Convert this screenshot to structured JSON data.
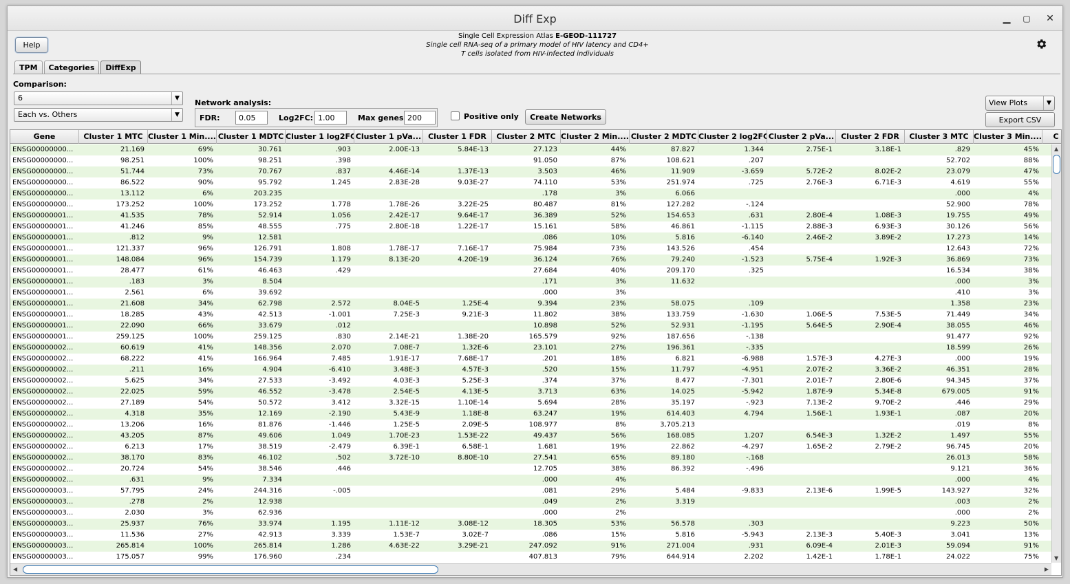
{
  "window": {
    "title": "Diff Exp"
  },
  "help_label": "Help",
  "header": {
    "line1_prefix": "Single Cell Expression Atlas",
    "line1_id": "E-GEOD-111727",
    "line2": "Single cell RNA-seq of a primary model of HIV latency and CD4+",
    "line3": "T cells isolated from HIV-infected individuals"
  },
  "tabs": [
    "TPM",
    "Categories",
    "DiffExp"
  ],
  "active_tab": "DiffExp",
  "comparison": {
    "label": "Comparison:",
    "value": "6",
    "mode": "Each vs. Others"
  },
  "network": {
    "label": "Network analysis:",
    "fdr_label": "FDR:",
    "fdr_value": "0.05",
    "log2fc_label": "Log2FC:",
    "log2fc_value": "1.00",
    "maxgenes_label": "Max genes:",
    "maxgenes_value": "200"
  },
  "positive_only_label": "Positive only",
  "create_networks_label": "Create Networks",
  "view_plots_label": "View Plots",
  "export_csv_label": "Export CSV",
  "table": {
    "columns": [
      "Gene",
      "Cluster 1 MTC",
      "Cluster 1 Min....",
      "Cluster 1 MDTC",
      "Cluster 1 log2FC",
      "Cluster 1 pVa...",
      "Cluster 1 FDR",
      "Cluster 2 MTC",
      "Cluster 2 Min....",
      "Cluster 2 MDTC",
      "Cluster 2 log2FC",
      "Cluster 2 pVa...",
      "Cluster 2 FDR",
      "Cluster 3 MTC",
      "Cluster 3 Min....",
      "C"
    ],
    "rows": [
      [
        "ENSG00000000...",
        "21.169",
        "69%",
        "30.761",
        ".903",
        "2.00E-13",
        "5.84E-13",
        "27.123",
        "44%",
        "87.827",
        "1.344",
        "2.75E-1",
        "3.18E-1",
        ".829",
        "45%"
      ],
      [
        "ENSG00000000...",
        "98.251",
        "100%",
        "98.251",
        ".398",
        "",
        "",
        "91.050",
        "87%",
        "108.621",
        ".207",
        "",
        "",
        "52.702",
        "88%"
      ],
      [
        "ENSG00000000...",
        "51.744",
        "73%",
        "70.767",
        ".837",
        "4.46E-14",
        "1.37E-13",
        "3.503",
        "46%",
        "11.909",
        "-3.659",
        "5.72E-2",
        "8.02E-2",
        "23.079",
        "47%"
      ],
      [
        "ENSG00000000...",
        "86.522",
        "90%",
        "95.792",
        "1.245",
        "2.83E-28",
        "9.03E-27",
        "74.110",
        "53%",
        "251.974",
        ".725",
        "2.76E-3",
        "6.71E-3",
        "4.619",
        "55%"
      ],
      [
        "ENSG00000000...",
        "13.112",
        "6%",
        "203.235",
        "",
        "",
        "",
        ".178",
        "3%",
        "6.066",
        "",
        "",
        "",
        ".000",
        "4%"
      ],
      [
        "ENSG00000000...",
        "173.252",
        "100%",
        "173.252",
        "1.778",
        "1.78E-26",
        "3.22E-25",
        "80.487",
        "81%",
        "127.282",
        "-.124",
        "",
        "",
        "52.900",
        "78%"
      ],
      [
        "ENSG00000001...",
        "41.535",
        "78%",
        "52.914",
        "1.056",
        "2.42E-17",
        "9.64E-17",
        "36.389",
        "52%",
        "154.653",
        ".631",
        "2.80E-4",
        "1.08E-3",
        "19.755",
        "49%"
      ],
      [
        "ENSG00000001...",
        "41.246",
        "85%",
        "48.555",
        ".775",
        "2.80E-18",
        "1.22E-17",
        "15.161",
        "58%",
        "46.861",
        "-1.115",
        "2.88E-3",
        "6.93E-3",
        "30.126",
        "56%"
      ],
      [
        "ENSG00000001...",
        ".812",
        "9%",
        "12.581",
        "",
        "",
        "",
        ".086",
        "10%",
        "5.816",
        "-6.140",
        "2.46E-2",
        "3.89E-2",
        "17.273",
        "14%"
      ],
      [
        "ENSG00000001...",
        "121.337",
        "96%",
        "126.791",
        "1.808",
        "1.78E-17",
        "7.16E-17",
        "75.984",
        "73%",
        "143.526",
        ".454",
        "",
        "",
        "12.643",
        "72%"
      ],
      [
        "ENSG00000001...",
        "148.084",
        "96%",
        "154.739",
        "1.179",
        "8.13E-20",
        "4.20E-19",
        "36.124",
        "76%",
        "79.240",
        "-1.523",
        "5.75E-4",
        "1.92E-3",
        "36.869",
        "73%"
      ],
      [
        "ENSG00000001...",
        "28.477",
        "61%",
        "46.463",
        ".429",
        "",
        "",
        "27.684",
        "40%",
        "209.170",
        ".325",
        "",
        "",
        "16.534",
        "38%"
      ],
      [
        "ENSG00000001...",
        ".183",
        "3%",
        "8.504",
        "",
        "",
        "",
        ".171",
        "3%",
        "11.632",
        "",
        "",
        "",
        ".000",
        "3%"
      ],
      [
        "ENSG00000001...",
        "2.561",
        "6%",
        "39.692",
        "",
        "",
        "",
        ".000",
        "3%",
        "",
        "",
        "",
        "",
        ".410",
        "3%"
      ],
      [
        "ENSG00000001...",
        "21.608",
        "34%",
        "62.798",
        "2.572",
        "8.04E-5",
        "1.25E-4",
        "9.394",
        "23%",
        "58.075",
        ".109",
        "",
        "",
        "1.358",
        "23%"
      ],
      [
        "ENSG00000001...",
        "18.285",
        "43%",
        "42.513",
        "-1.001",
        "7.25E-3",
        "9.21E-3",
        "11.802",
        "38%",
        "133.759",
        "-1.630",
        "1.06E-5",
        "7.53E-5",
        "71.449",
        "34%"
      ],
      [
        "ENSG00000001...",
        "22.090",
        "66%",
        "33.679",
        ".012",
        "",
        "",
        "10.898",
        "52%",
        "52.931",
        "-1.195",
        "5.64E-5",
        "2.90E-4",
        "38.055",
        "46%"
      ],
      [
        "ENSG00000001...",
        "259.125",
        "100%",
        "259.125",
        ".830",
        "2.14E-21",
        "1.38E-20",
        "165.579",
        "92%",
        "187.656",
        "-.138",
        "",
        "",
        "91.477",
        "92%"
      ],
      [
        "ENSG00000002...",
        "60.619",
        "41%",
        "148.356",
        "2.070",
        "7.08E-7",
        "1.32E-6",
        "23.101",
        "27%",
        "196.361",
        "-.335",
        "",
        "",
        "18.599",
        "26%"
      ],
      [
        "ENSG00000002...",
        "68.222",
        "41%",
        "166.964",
        "7.485",
        "1.91E-17",
        "7.68E-17",
        ".201",
        "18%",
        "6.821",
        "-6.988",
        "1.57E-3",
        "4.27E-3",
        ".000",
        "19%"
      ],
      [
        "ENSG00000002...",
        ".211",
        "16%",
        "4.904",
        "-6.410",
        "3.48E-3",
        "4.57E-3",
        ".520",
        "15%",
        "11.797",
        "-4.951",
        "2.07E-2",
        "3.36E-2",
        "46.351",
        "28%"
      ],
      [
        "ENSG00000002...",
        "5.625",
        "34%",
        "27.533",
        "-3.492",
        "4.03E-3",
        "5.25E-3",
        ".374",
        "37%",
        "8.477",
        "-7.301",
        "2.01E-7",
        "2.80E-6",
        "94.345",
        "37%"
      ],
      [
        "ENSG00000002...",
        "22.025",
        "59%",
        "46.552",
        "-3.478",
        "2.54E-5",
        "4.13E-5",
        "3.713",
        "63%",
        "14.025",
        "-5.942",
        "1.87E-9",
        "5.34E-8",
        "679.005",
        "91%"
      ],
      [
        "ENSG00000002...",
        "27.189",
        "54%",
        "50.572",
        "3.412",
        "3.32E-15",
        "1.10E-14",
        "5.694",
        "28%",
        "35.197",
        "-.923",
        "7.13E-2",
        "9.70E-2",
        ".446",
        "29%"
      ],
      [
        "ENSG00000002...",
        "4.318",
        "35%",
        "12.169",
        "-2.190",
        "5.43E-9",
        "1.18E-8",
        "63.247",
        "19%",
        "614.403",
        "4.794",
        "1.56E-1",
        "1.93E-1",
        ".087",
        "20%"
      ],
      [
        "ENSG00000002...",
        "13.206",
        "16%",
        "81.876",
        "-1.446",
        "1.25E-5",
        "2.09E-5",
        "108.977",
        "8%",
        "3,705.213",
        "",
        "",
        "",
        ".019",
        "8%"
      ],
      [
        "ENSG00000002...",
        "43.205",
        "87%",
        "49.606",
        "1.049",
        "1.70E-23",
        "1.53E-22",
        "49.437",
        "56%",
        "168.085",
        "1.207",
        "6.54E-3",
        "1.32E-2",
        "1.497",
        "55%"
      ],
      [
        "ENSG00000002...",
        "6.213",
        "17%",
        "38.519",
        "-2.479",
        "6.39E-1",
        "6.58E-1",
        "1.681",
        "19%",
        "22.862",
        "-4.297",
        "1.65E-2",
        "2.79E-2",
        "96.745",
        "20%"
      ],
      [
        "ENSG00000002...",
        "38.170",
        "83%",
        "46.102",
        ".502",
        "3.72E-10",
        "8.80E-10",
        "27.541",
        "65%",
        "89.180",
        "-.168",
        "",
        "",
        "26.013",
        "58%"
      ],
      [
        "ENSG00000002...",
        "20.724",
        "54%",
        "38.546",
        ".446",
        "",
        "",
        "12.705",
        "38%",
        "86.392",
        "-.496",
        "",
        "",
        "9.121",
        "36%"
      ],
      [
        "ENSG00000002...",
        ".631",
        "9%",
        "7.334",
        "",
        "",
        "",
        ".000",
        "4%",
        "",
        "",
        "",
        "",
        ".000",
        "4%"
      ],
      [
        "ENSG00000003...",
        "57.795",
        "24%",
        "244.316",
        "-.005",
        "",
        "",
        ".081",
        "29%",
        "5.484",
        "-9.833",
        "2.13E-6",
        "1.99E-5",
        "143.927",
        "32%"
      ],
      [
        "ENSG00000003...",
        ".278",
        "2%",
        "12.938",
        "",
        "",
        "",
        ".049",
        "2%",
        "3.319",
        "",
        "",
        "",
        ".003",
        "2%"
      ],
      [
        "ENSG00000003...",
        "2.030",
        "3%",
        "62.936",
        "",
        "",
        "",
        ".000",
        "2%",
        "",
        "",
        "",
        "",
        ".000",
        "2%"
      ],
      [
        "ENSG00000003...",
        "25.937",
        "76%",
        "33.974",
        "1.195",
        "1.11E-12",
        "3.08E-12",
        "18.305",
        "53%",
        "56.578",
        ".303",
        "",
        "",
        "9.223",
        "50%"
      ],
      [
        "ENSG00000003...",
        "11.536",
        "27%",
        "42.913",
        "3.339",
        "1.53E-7",
        "3.02E-7",
        ".086",
        "15%",
        "5.816",
        "-5.943",
        "2.13E-3",
        "5.40E-3",
        "3.041",
        "13%"
      ],
      [
        "ENSG00000003...",
        "265.814",
        "100%",
        "265.814",
        "1.286",
        "4.63E-22",
        "3.29E-21",
        "247.092",
        "91%",
        "271.004",
        ".931",
        "6.09E-4",
        "2.01E-3",
        "59.094",
        "91%"
      ],
      [
        "ENSG00000003...",
        "175.057",
        "99%",
        "176.960",
        ".234",
        "",
        "",
        "407.813",
        "79%",
        "644.914",
        "2.202",
        "1.42E-1",
        "1.78E-1",
        "24.022",
        "75%"
      ]
    ]
  }
}
